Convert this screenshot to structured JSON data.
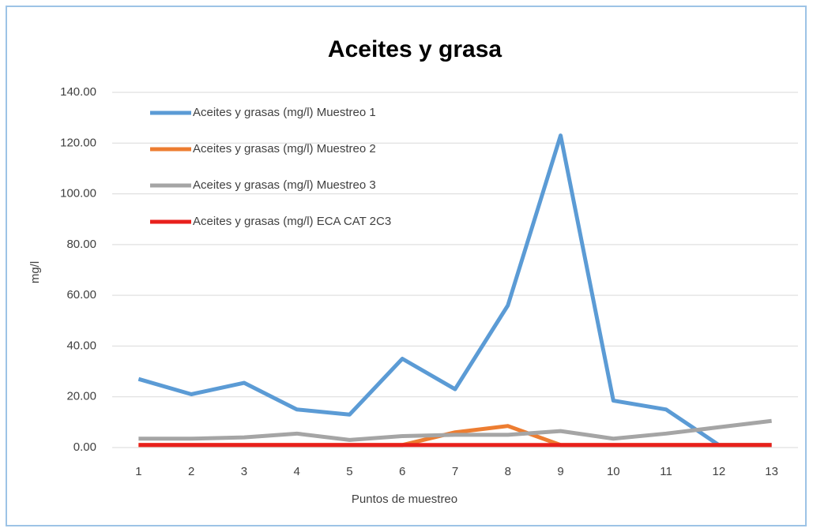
{
  "chart_data": {
    "type": "line",
    "title": "Aceites y grasa",
    "x_label": "Puntos de muestreo",
    "y_label": "mg/l",
    "categories": [
      "1",
      "2",
      "3",
      "4",
      "5",
      "6",
      "7",
      "8",
      "9",
      "10",
      "11",
      "12",
      "13"
    ],
    "series": [
      {
        "name": "Aceites y grasas (mg/l) Muestreo 1",
        "color": "#5b9bd5",
        "values": [
          27,
          21,
          25.5,
          15,
          13,
          35,
          23,
          56,
          123,
          18.5,
          15,
          1,
          1
        ]
      },
      {
        "name": "Aceites y grasas (mg/l) Muestreo 2",
        "color": "#ed7d31",
        "values": [
          1,
          1,
          1,
          1,
          1,
          1,
          6,
          8.5,
          1,
          1,
          1,
          1,
          1
        ]
      },
      {
        "name": "Aceites y grasas (mg/l) Muestreo 3",
        "color": "#a5a5a5",
        "values": [
          3.5,
          3.5,
          4,
          5.5,
          3,
          4.5,
          5,
          5,
          6.5,
          3.5,
          5.5,
          8,
          10.5
        ]
      },
      {
        "name": "Aceites y grasas (mg/l) ECA CAT 2C3",
        "color": "#e8201c",
        "values": [
          1,
          1,
          1,
          1,
          1,
          1,
          1,
          1,
          1,
          1,
          1,
          1,
          1
        ]
      }
    ],
    "ylim": [
      0,
      140
    ],
    "yticks": [
      {
        "value": 0,
        "label": "0.00"
      },
      {
        "value": 20,
        "label": "20.00"
      },
      {
        "value": 40,
        "label": "40.00"
      },
      {
        "value": 60,
        "label": "60.00"
      },
      {
        "value": 80,
        "label": "80.00"
      },
      {
        "value": 100,
        "label": "100.00"
      },
      {
        "value": 120,
        "label": "120.00"
      },
      {
        "value": 140,
        "label": "140.00"
      }
    ],
    "grid": true,
    "legend": "upper left"
  }
}
